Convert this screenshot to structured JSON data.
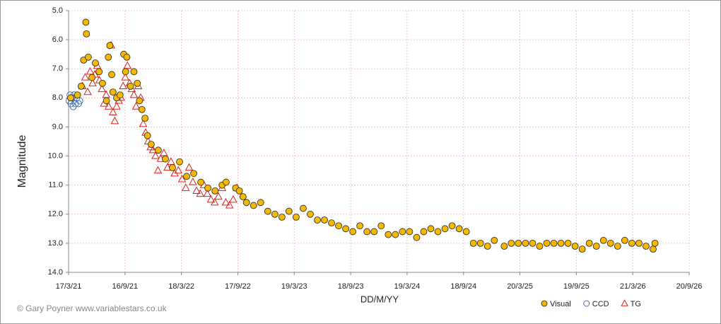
{
  "chart_data": {
    "type": "scatter",
    "x_label": "DD/M/YY",
    "y_label": "Magnitude",
    "credit": "© Gary Poyner www.variablestars.co.uk",
    "xlim": [
      "2021-03-17",
      "2026-09-20"
    ],
    "xticks": [
      {
        "value": "2021-03-17",
        "label": "17/3/21"
      },
      {
        "value": "2021-09-16",
        "label": "16/9/21"
      },
      {
        "value": "2022-03-18",
        "label": "18/3/22"
      },
      {
        "value": "2022-09-17",
        "label": "17/9/22"
      },
      {
        "value": "2023-03-19",
        "label": "19/3/23"
      },
      {
        "value": "2023-09-18",
        "label": "18/9/23"
      },
      {
        "value": "2024-03-19",
        "label": "19/3/24"
      },
      {
        "value": "2024-09-18",
        "label": "18/9/24"
      },
      {
        "value": "2025-03-20",
        "label": "20/3/25"
      },
      {
        "value": "2025-09-19",
        "label": "19/9/25"
      },
      {
        "value": "2026-03-21",
        "label": "21/3/26"
      },
      {
        "value": "2026-09-20",
        "label": "20/9/26"
      }
    ],
    "ylim": [
      5,
      14
    ],
    "y_inverted": true,
    "yticks": [
      {
        "value": 5,
        "label": "5.0"
      },
      {
        "value": 6,
        "label": "6.0"
      },
      {
        "value": 7,
        "label": "7.0"
      },
      {
        "value": 8,
        "label": "8.0"
      },
      {
        "value": 9,
        "label": "9.0"
      },
      {
        "value": 10,
        "label": "10.0"
      },
      {
        "value": 11,
        "label": "11.0"
      },
      {
        "value": 12,
        "label": "12.0"
      },
      {
        "value": 13,
        "label": "13.0"
      },
      {
        "value": 14,
        "label": "14.0"
      }
    ],
    "grid": true,
    "legend": "bottom-right",
    "series": [
      {
        "name": "Visual",
        "color": "#f5b800",
        "marker": "circle",
        "x": [
          "2021-03-24",
          "2021-04-15",
          "2021-04-27",
          "2021-05-05",
          "2021-05-12",
          "2021-05-14",
          "2021-05-20",
          "2021-06-01",
          "2021-06-12",
          "2021-06-24",
          "2021-07-05",
          "2021-07-18",
          "2021-07-24",
          "2021-07-29",
          "2021-08-04",
          "2021-08-08",
          "2021-08-20",
          "2021-08-31",
          "2021-09-12",
          "2021-09-18",
          "2021-09-22",
          "2021-10-04",
          "2021-10-15",
          "2021-10-26",
          "2021-11-02",
          "2021-11-10",
          "2021-11-20",
          "2021-11-28",
          "2021-12-10",
          "2022-01-02",
          "2022-01-25",
          "2022-02-17",
          "2022-03-12",
          "2022-04-04",
          "2022-04-27",
          "2022-05-20",
          "2022-06-12",
          "2022-07-05",
          "2022-07-28",
          "2022-08-10",
          "2022-09-10",
          "2022-09-22",
          "2022-10-04",
          "2022-10-15",
          "2022-11-07",
          "2022-11-30",
          "2022-12-23",
          "2023-01-15",
          "2023-02-07",
          "2023-03-02",
          "2023-03-25",
          "2023-04-17",
          "2023-05-10",
          "2023-06-02",
          "2023-06-25",
          "2023-07-18",
          "2023-08-10",
          "2023-09-02",
          "2023-09-25",
          "2023-10-18",
          "2023-11-10",
          "2023-12-03",
          "2023-12-26",
          "2024-01-18",
          "2024-02-10",
          "2024-03-04",
          "2024-03-27",
          "2024-04-19",
          "2024-05-12",
          "2024-06-04",
          "2024-06-27",
          "2024-07-20",
          "2024-08-12",
          "2024-09-04",
          "2024-09-27",
          "2024-10-20",
          "2024-11-12",
          "2024-12-05",
          "2024-12-27",
          "2025-01-28",
          "2025-02-20",
          "2025-03-15",
          "2025-04-07",
          "2025-04-30",
          "2025-05-23",
          "2025-06-15",
          "2025-07-08",
          "2025-07-31",
          "2025-08-23",
          "2025-09-15",
          "2025-10-08",
          "2025-10-31",
          "2025-11-23",
          "2025-12-16",
          "2026-01-08",
          "2026-01-31",
          "2026-02-23",
          "2026-03-18",
          "2026-04-10",
          "2026-05-03",
          "2026-05-26",
          "2026-06-01"
        ],
        "values": [
          8.0,
          7.9,
          7.6,
          6.7,
          5.4,
          5.8,
          6.6,
          7.3,
          6.8,
          7.1,
          7.5,
          8.1,
          6.6,
          6.2,
          7.2,
          7.8,
          8.0,
          7.9,
          6.5,
          7.1,
          6.6,
          7.6,
          7.1,
          7.5,
          8.1,
          8.4,
          8.7,
          9.3,
          9.6,
          9.8,
          10.1,
          10.4,
          10.2,
          10.7,
          10.6,
          10.9,
          11.1,
          11.2,
          11.0,
          10.9,
          11.1,
          11.2,
          11.4,
          11.6,
          11.7,
          11.6,
          11.9,
          12.0,
          12.1,
          11.9,
          12.1,
          11.8,
          12.0,
          12.2,
          12.2,
          12.3,
          12.4,
          12.5,
          12.6,
          12.4,
          12.6,
          12.6,
          12.4,
          12.7,
          12.7,
          12.6,
          12.6,
          12.8,
          12.6,
          12.5,
          12.6,
          12.5,
          12.4,
          12.5,
          12.6,
          13.0,
          13.0,
          13.1,
          12.9,
          13.1,
          13.0,
          13.0,
          13.0,
          13.0,
          13.1,
          13.0,
          13.0,
          13.0,
          13.0,
          13.1,
          13.2,
          13.0,
          13.1,
          12.9,
          13.0,
          13.1,
          12.9,
          13.0,
          13.0,
          13.1,
          13.2,
          13.0
        ]
      },
      {
        "name": "CCD",
        "color": "#4a6fa8",
        "marker": "open-circle",
        "x": [
          "2021-03-19",
          "2021-03-22",
          "2021-03-25",
          "2021-03-28",
          "2021-04-01",
          "2021-04-04",
          "2021-04-08",
          "2021-04-12",
          "2021-04-18",
          "2021-04-22"
        ],
        "values": [
          8.1,
          7.9,
          8.2,
          8.0,
          8.3,
          7.9,
          8.2,
          8.0,
          8.2,
          8.1
        ]
      },
      {
        "name": "TG",
        "color": "#e0201b",
        "marker": "triangle",
        "x": [
          "2021-05-01",
          "2021-05-10",
          "2021-05-18",
          "2021-05-26",
          "2021-06-03",
          "2021-06-10",
          "2021-06-18",
          "2021-06-25",
          "2021-07-03",
          "2021-07-10",
          "2021-07-17",
          "2021-07-25",
          "2021-08-02",
          "2021-08-08",
          "2021-08-14",
          "2021-08-20",
          "2021-08-27",
          "2021-09-03",
          "2021-09-10",
          "2021-09-17",
          "2021-09-24",
          "2021-10-01",
          "2021-10-08",
          "2021-10-15",
          "2021-10-22",
          "2021-10-29",
          "2021-11-06",
          "2021-11-14",
          "2021-11-22",
          "2021-11-30",
          "2021-12-08",
          "2021-12-16",
          "2021-12-24",
          "2022-01-01",
          "2022-01-10",
          "2022-01-20",
          "2022-02-01",
          "2022-02-12",
          "2022-02-24",
          "2022-03-08",
          "2022-03-20",
          "2022-04-01",
          "2022-04-12",
          "2022-04-24",
          "2022-05-06",
          "2022-05-18",
          "2022-05-30",
          "2022-06-10",
          "2022-06-22",
          "2022-07-04",
          "2022-07-16",
          "2022-07-28",
          "2022-08-09",
          "2022-08-21",
          "2022-09-02",
          "2022-09-14"
        ],
        "values": [
          7.6,
          7.3,
          7.8,
          7.1,
          7.5,
          7.2,
          6.9,
          7.4,
          7.7,
          8.2,
          7.9,
          8.3,
          6.2,
          8.5,
          8.8,
          8.3,
          8.1,
          8.0,
          7.6,
          7.3,
          6.9,
          7.5,
          7.7,
          7.9,
          8.3,
          7.6,
          8.0,
          8.9,
          9.2,
          9.5,
          9.7,
          9.8,
          10.0,
          10.5,
          10.1,
          9.9,
          10.4,
          10.2,
          10.6,
          10.5,
          10.8,
          11.1,
          10.4,
          10.9,
          11.2,
          11.3,
          11.0,
          11.3,
          11.5,
          11.6,
          11.4,
          11.1,
          11.6,
          11.7,
          11.5,
          11.1
        ]
      }
    ]
  }
}
